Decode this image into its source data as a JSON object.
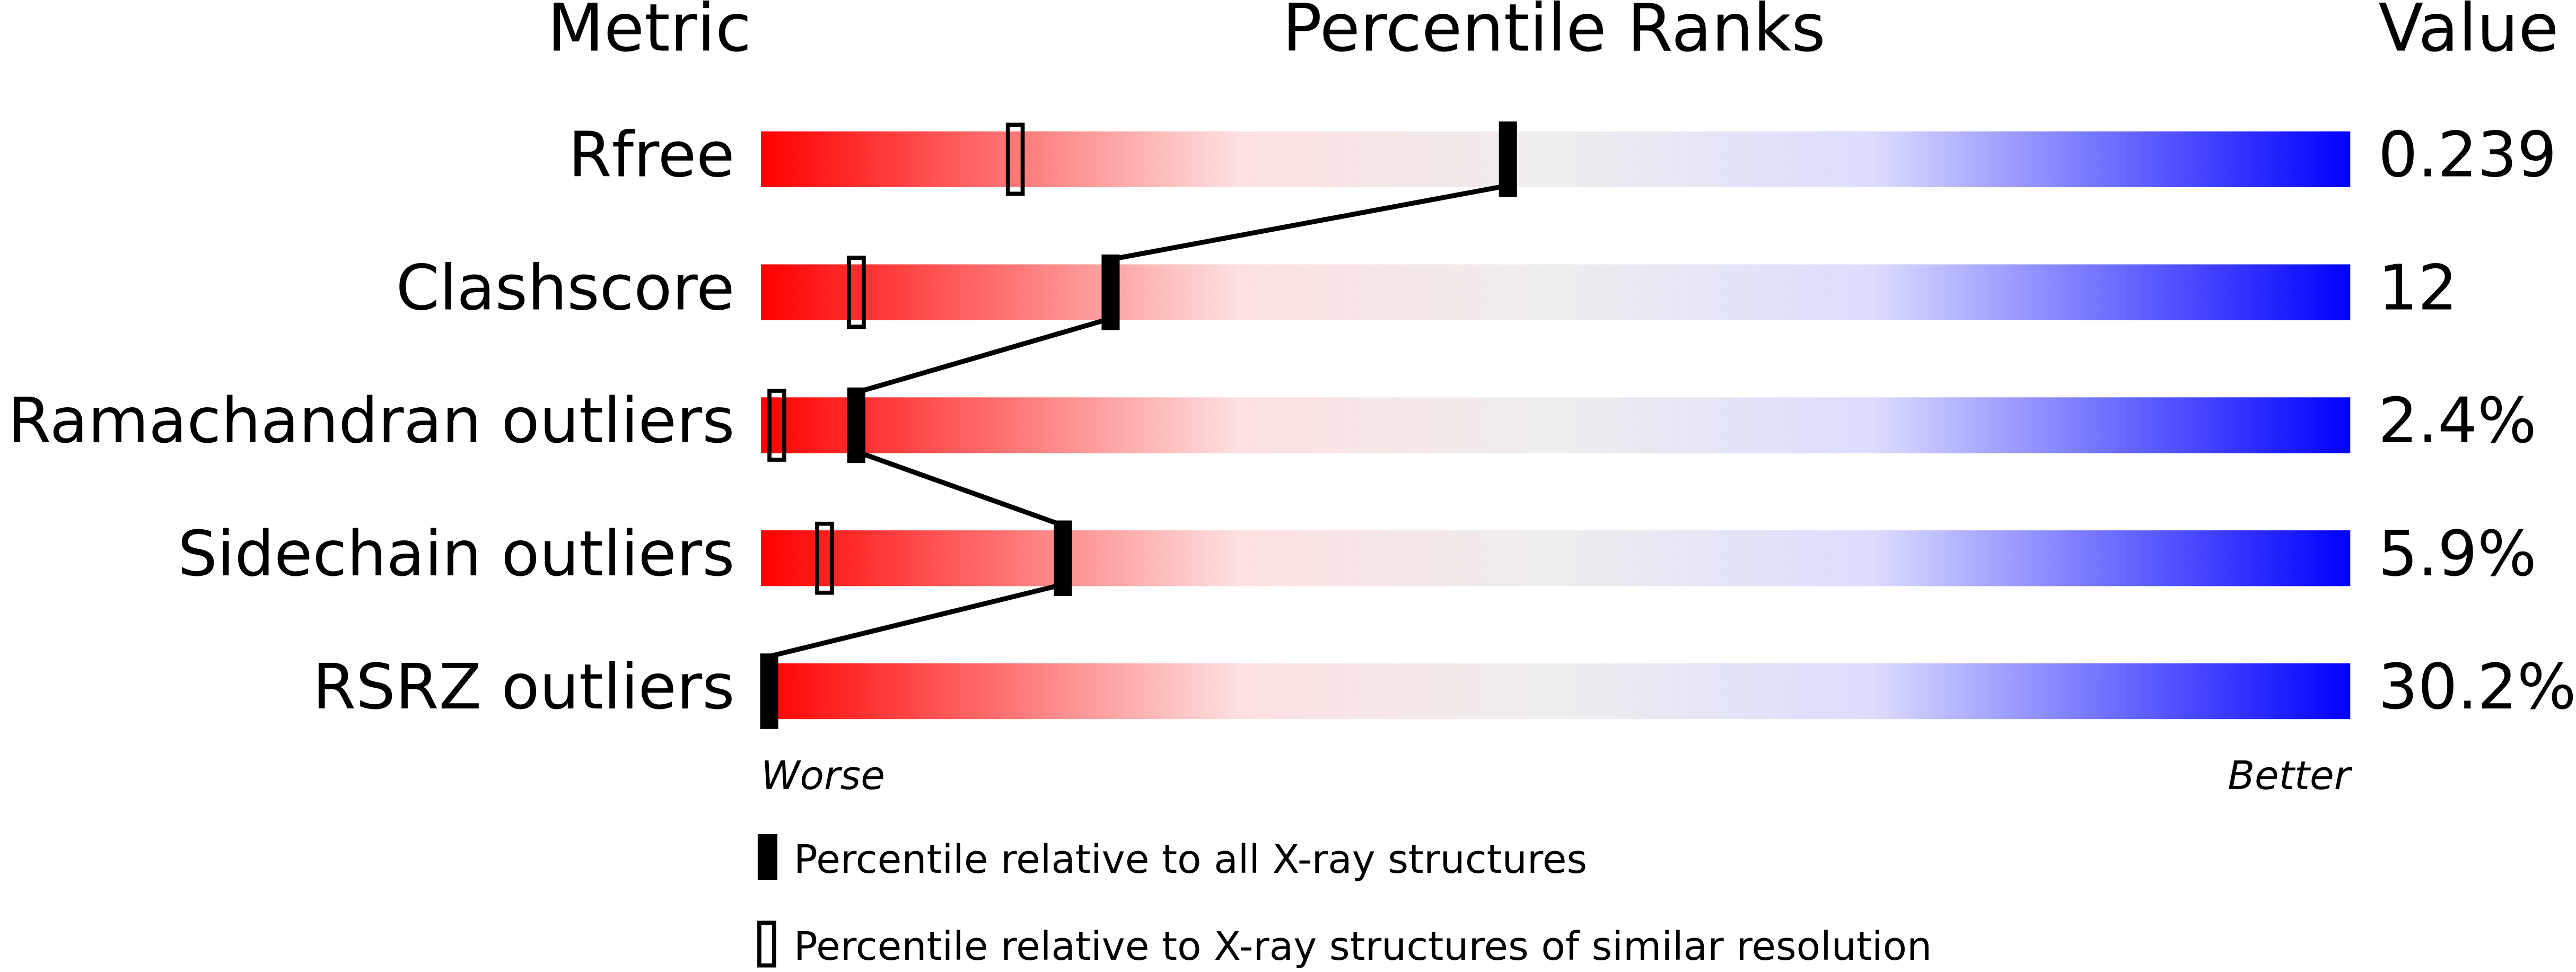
{
  "chart_data": {
    "type": "percentile-slider",
    "headers": [
      "Metric",
      "Percentile Ranks",
      "Value"
    ],
    "categories": [
      "Rfree",
      "Clashscore",
      "Ramachandran outliers",
      "Sidechain outliers",
      "RSRZ outliers"
    ],
    "metric_values": [
      "0.239",
      "12",
      "2.4%",
      "5.9%",
      "30.2%"
    ],
    "xlim": [
      0,
      100
    ],
    "x_axis_labels": [
      "Worse",
      "Better"
    ],
    "series": [
      {
        "name": "Percentile relative to all X-ray structures",
        "color": "#000000",
        "style": "filled",
        "values": [
          47,
          22,
          6,
          19,
          0
        ]
      },
      {
        "name": "Percentile relative to X-ray structures of similar resolution",
        "color": "#000000",
        "style": "open",
        "values": [
          16,
          6,
          1,
          4,
          null
        ]
      }
    ]
  }
}
